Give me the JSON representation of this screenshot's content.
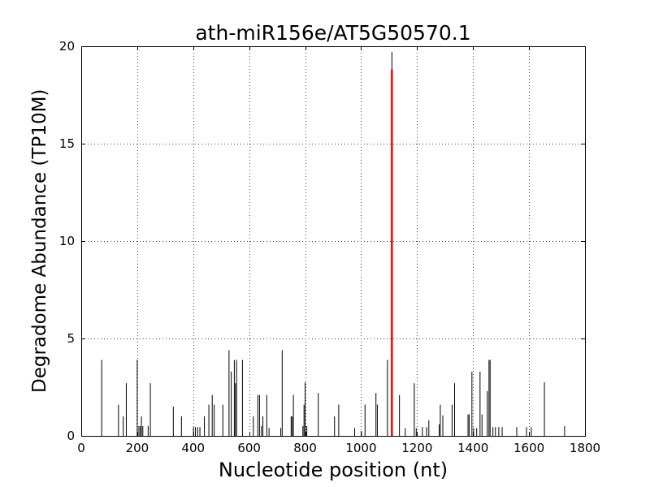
{
  "figure": {
    "background": "#ffffff",
    "frame_color": "#000000",
    "grid_style": "dotted"
  },
  "chart_data": {
    "type": "stem",
    "title": "ath-miR156e/AT5G50570.1",
    "xlabel": "Nucleotide position (nt)",
    "ylabel": "Degradome Abundance (TP10M)",
    "xlim": [
      0,
      1800
    ],
    "ylim": [
      0,
      20
    ],
    "xticks": [
      0,
      200,
      400,
      600,
      800,
      1000,
      1200,
      1400,
      1600,
      1800
    ],
    "yticks": [
      0,
      5,
      10,
      15,
      20
    ],
    "grid": "on",
    "tick_direction": "in",
    "legend": "none",
    "stem_color": "#000000",
    "highlight": {
      "x": 1110,
      "black_height": 19.7,
      "red_height": 18.8,
      "color": "#ff0000"
    },
    "points": [
      [
        73,
        3.9
      ],
      [
        133,
        1.6
      ],
      [
        150,
        1.0
      ],
      [
        161,
        2.7
      ],
      [
        200,
        3.9
      ],
      [
        206,
        0.5
      ],
      [
        211,
        0.5
      ],
      [
        215,
        1.0
      ],
      [
        220,
        0.5
      ],
      [
        239,
        0.5
      ],
      [
        247,
        2.7
      ],
      [
        329,
        1.5
      ],
      [
        358,
        1.0
      ],
      [
        401,
        0.45
      ],
      [
        408,
        0.45
      ],
      [
        416,
        0.45
      ],
      [
        424,
        0.45
      ],
      [
        440,
        1.0
      ],
      [
        456,
        1.6
      ],
      [
        468,
        2.1
      ],
      [
        475,
        1.6
      ],
      [
        506,
        1.6
      ],
      [
        528,
        4.4
      ],
      [
        536,
        3.3
      ],
      [
        547,
        3.9
      ],
      [
        551,
        2.7
      ],
      [
        555,
        3.9
      ],
      [
        576,
        3.9
      ],
      [
        615,
        1.0
      ],
      [
        631,
        2.1
      ],
      [
        637,
        2.1
      ],
      [
        644,
        0.5
      ],
      [
        649,
        1.0
      ],
      [
        663,
        2.1
      ],
      [
        671,
        0.4
      ],
      [
        713,
        0.4
      ],
      [
        718,
        4.4
      ],
      [
        750,
        1.0
      ],
      [
        754,
        1.0
      ],
      [
        758,
        2.1
      ],
      [
        792,
        0.5
      ],
      [
        796,
        1.6
      ],
      [
        800,
        2.75
      ],
      [
        806,
        0.5
      ],
      [
        847,
        2.2
      ],
      [
        905,
        1.0
      ],
      [
        920,
        1.6
      ],
      [
        977,
        0.4
      ],
      [
        1001,
        0.25
      ],
      [
        1014,
        1.6
      ],
      [
        1053,
        2.2
      ],
      [
        1058,
        1.6
      ],
      [
        1094,
        3.9
      ],
      [
        1110,
        19.7
      ],
      [
        1137,
        2.1
      ],
      [
        1158,
        0.4
      ],
      [
        1190,
        2.7
      ],
      [
        1197,
        0.4
      ],
      [
        1219,
        0.45
      ],
      [
        1234,
        0.45
      ],
      [
        1242,
        0.8
      ],
      [
        1279,
        0.6
      ],
      [
        1283,
        1.6
      ],
      [
        1292,
        1.05
      ],
      [
        1325,
        1.6
      ],
      [
        1334,
        2.7
      ],
      [
        1382,
        1.1
      ],
      [
        1386,
        1.1
      ],
      [
        1396,
        3.3
      ],
      [
        1402,
        0.4
      ],
      [
        1413,
        0.4
      ],
      [
        1425,
        3.3
      ],
      [
        1432,
        1.1
      ],
      [
        1451,
        2.3
      ],
      [
        1457,
        3.9
      ],
      [
        1461,
        3.9
      ],
      [
        1471,
        0.45
      ],
      [
        1480,
        0.45
      ],
      [
        1492,
        0.45
      ],
      [
        1504,
        0.45
      ],
      [
        1556,
        0.45
      ],
      [
        1591,
        0.45
      ],
      [
        1608,
        0.45
      ],
      [
        1655,
        2.75
      ],
      [
        1727,
        0.5
      ]
    ]
  }
}
